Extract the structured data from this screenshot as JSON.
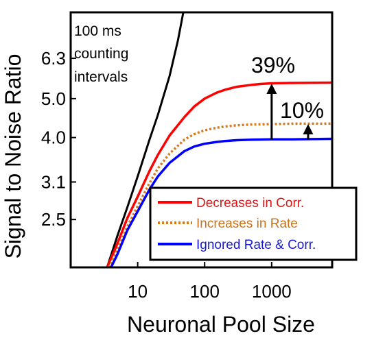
{
  "chart_data": {
    "type": "line",
    "xlabel": "Neuronal Pool Size",
    "ylabel": "Signal to Noise Ratio",
    "x_scale": "log",
    "y_scale": "log",
    "xlim": [
      1,
      8000
    ],
    "ylim": [
      1.9,
      8.2
    ],
    "x_ticks": [
      {
        "value": 10,
        "label": "10"
      },
      {
        "value": 100,
        "label": "100"
      },
      {
        "value": 1000,
        "label": "1000"
      }
    ],
    "y_ticks": [
      {
        "value": 2.5,
        "label": "2.5"
      },
      {
        "value": 3.1,
        "label": "3.1"
      },
      {
        "value": 4.0,
        "label": "4.0"
      },
      {
        "value": 5.0,
        "label": "5.0"
      },
      {
        "value": 6.3,
        "label": "6.3"
      }
    ],
    "grid": false,
    "legend_position": "bottom-right",
    "series": [
      {
        "name": "",
        "color": "#000000",
        "style": "solid",
        "x": [
          3.5,
          5,
          7,
          10,
          15,
          20,
          30,
          40,
          48
        ],
        "y": [
          1.9,
          2.28,
          2.68,
          3.2,
          3.95,
          4.55,
          5.7,
          7.0,
          8.2
        ]
      },
      {
        "name": "Decreases in Corr.",
        "color": "#ff0000",
        "style": "solid",
        "x": [
          3.5,
          5,
          7,
          10,
          15,
          20,
          30,
          50,
          70,
          100,
          150,
          200,
          300,
          500,
          700,
          1000,
          2000,
          8000
        ],
        "y": [
          1.9,
          2.18,
          2.52,
          2.85,
          3.3,
          3.62,
          4.05,
          4.5,
          4.78,
          5.0,
          5.17,
          5.26,
          5.35,
          5.41,
          5.44,
          5.46,
          5.47,
          5.48
        ]
      },
      {
        "name": "Increases in Rate",
        "color": "#d97a1a",
        "style": "dotted",
        "x": [
          3.7,
          5,
          7,
          10,
          15,
          20,
          30,
          50,
          70,
          100,
          150,
          200,
          300,
          500,
          1000,
          2000,
          8000
        ],
        "y": [
          1.9,
          2.1,
          2.4,
          2.7,
          3.08,
          3.35,
          3.65,
          3.95,
          4.08,
          4.17,
          4.23,
          4.26,
          4.29,
          4.31,
          4.32,
          4.33,
          4.33
        ]
      },
      {
        "name": "Ignored Rate & Corr.",
        "color": "#0000ff",
        "style": "solid",
        "x": [
          4.0,
          5,
          7,
          10,
          15,
          20,
          30,
          50,
          70,
          100,
          150,
          200,
          300,
          500,
          1000,
          2000,
          8000
        ],
        "y": [
          1.9,
          2.05,
          2.35,
          2.62,
          2.97,
          3.2,
          3.46,
          3.7,
          3.8,
          3.86,
          3.9,
          3.92,
          3.94,
          3.95,
          3.96,
          3.96,
          3.97
        ]
      }
    ],
    "annotations": [
      {
        "text": "100 ms",
        "kind": "label"
      },
      {
        "text": "counting",
        "kind": "label"
      },
      {
        "text": "intervals",
        "kind": "label"
      },
      {
        "text": "39%",
        "kind": "arrow-label",
        "x": 1000,
        "y_from": 3.96,
        "y_to": 5.46
      },
      {
        "text": "10%",
        "kind": "arrow-label",
        "x": 3500,
        "y_from": 3.96,
        "y_to": 4.33
      }
    ]
  }
}
